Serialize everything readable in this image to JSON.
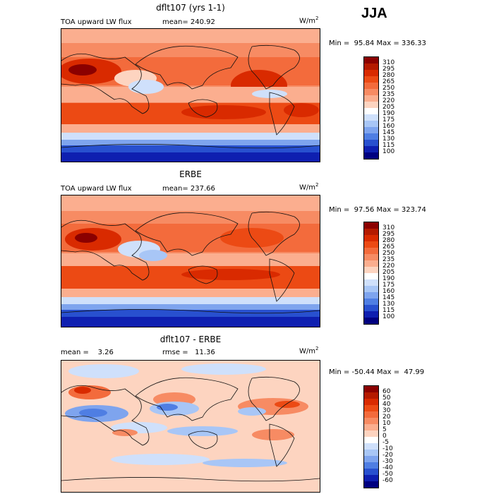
{
  "season": "JJA",
  "panels": [
    {
      "id": "model",
      "title": "dflt107 (yrs 1-1)",
      "left_label": "TOA upward LW flux",
      "center_label": "mean= 240.92",
      "unit": "W/m",
      "unit_sup": "2",
      "minmax": "Min =  95.84 Max = 336.33",
      "levels": [
        "310",
        "295",
        "280",
        "265",
        "250",
        "235",
        "220",
        "205",
        "190",
        "175",
        "160",
        "145",
        "130",
        "115",
        "100"
      ]
    },
    {
      "id": "obs",
      "title": "ERBE",
      "left_label": "TOA upward LW flux",
      "center_label": "mean= 237.66",
      "unit": "W/m",
      "unit_sup": "2",
      "minmax": "Min =  97.56 Max = 323.74",
      "levels": [
        "310",
        "295",
        "280",
        "265",
        "250",
        "235",
        "220",
        "205",
        "190",
        "175",
        "160",
        "145",
        "130",
        "115",
        "100"
      ]
    },
    {
      "id": "diff",
      "title": "dflt107 - ERBE",
      "left_label": "mean =    3.26",
      "center_label": "rmse =   11.36",
      "unit": "W/m",
      "unit_sup": "2",
      "minmax": "Min = -50.44 Max =  47.99",
      "levels": [
        "60",
        "50",
        "40",
        "30",
        "20",
        "10",
        "5",
        "0",
        "-5",
        "-10",
        "-20",
        "-30",
        "-40",
        "-50",
        "-60"
      ]
    }
  ],
  "colors": {
    "flux_scale": [
      "#8b0000",
      "#b41a00",
      "#d92a00",
      "#ec4a14",
      "#f36b3c",
      "#f78b63",
      "#fbae8f",
      "#fdd4c0",
      "#ffffff",
      "#cfe0fb",
      "#a8c6f6",
      "#7ea4ee",
      "#4f7ee3",
      "#2850cf",
      "#0e1fb0",
      "#000080"
    ],
    "diff_scale": [
      "#8b0000",
      "#b41a00",
      "#d92a00",
      "#ec4a14",
      "#f36b3c",
      "#f78b63",
      "#fbae8f",
      "#fdd4c0",
      "#ffffff",
      "#cfe0fb",
      "#a8c6f6",
      "#7ea4ee",
      "#4f7ee3",
      "#2850cf",
      "#0e1fb0",
      "#000080"
    ]
  }
}
